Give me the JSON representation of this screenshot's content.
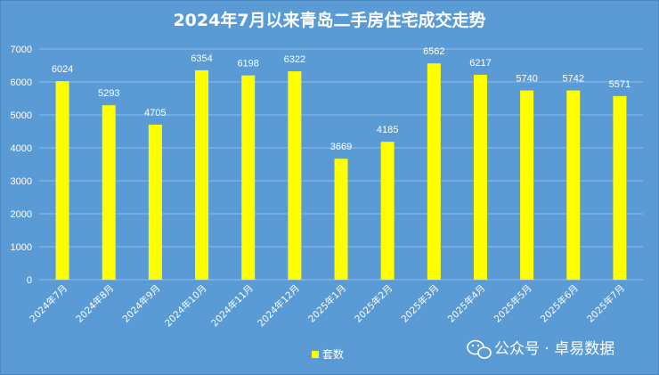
{
  "chart_data": {
    "type": "bar",
    "title": "2024年7月以来青岛二手房住宅成交走势",
    "categories": [
      "2024年7月",
      "2024年8月",
      "2024年9月",
      "2024年10月",
      "2024年11月",
      "2024年12月",
      "2025年1月",
      "2025年2月",
      "2025年3月",
      "2025年4月",
      "2025年5月",
      "2025年6月",
      "2025年7月"
    ],
    "series": [
      {
        "name": "套数",
        "values": [
          6024,
          5293,
          4705,
          6354,
          6198,
          6322,
          3669,
          4185,
          6562,
          6217,
          5740,
          5742,
          5571
        ]
      }
    ],
    "ylim": [
      0,
      7000
    ],
    "yticks": [
      0,
      1000,
      2000,
      3000,
      4000,
      5000,
      6000,
      7000
    ],
    "grid": true,
    "legend_position": "bottom",
    "colors": {
      "background": "#5b9bd5",
      "bar": "#ffff00",
      "text": "#ffffff",
      "grid": "#8fbde6"
    }
  },
  "watermark": {
    "text": "公众号 · 卓易数据",
    "icon": "wechat-icon"
  }
}
